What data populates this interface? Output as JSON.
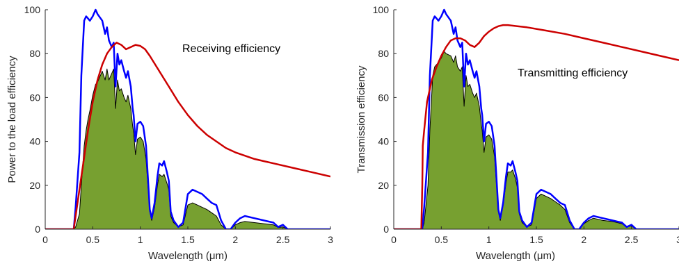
{
  "chart_data": [
    {
      "type": "line",
      "title": "",
      "xlabel": "Wavelength (μm)",
      "ylabel": "Power to the load efficiency",
      "xlim": [
        0,
        3
      ],
      "ylim": [
        0,
        100
      ],
      "xticks": [
        0,
        0.5,
        1,
        1.5,
        2,
        2.5,
        3
      ],
      "xtick_labels": [
        "0",
        "0.5",
        "1",
        "1.5",
        "2",
        "2.5",
        "3"
      ],
      "yticks": [
        0,
        20,
        40,
        60,
        80,
        100
      ],
      "ytick_labels": [
        "0",
        "20",
        "40",
        "60",
        "80",
        "100"
      ],
      "annotation": "Receiving efficiency",
      "grid": false,
      "series": [
        {
          "color": "#0000ff",
          "x": [
            0,
            0.3,
            0.32,
            0.36,
            0.38,
            0.41,
            0.43,
            0.45,
            0.47,
            0.5,
            0.53,
            0.55,
            0.6,
            0.63,
            0.65,
            0.67,
            0.7,
            0.72,
            0.74,
            0.76,
            0.78,
            0.8,
            0.83,
            0.85,
            0.87,
            0.9,
            0.92,
            0.93,
            0.95,
            0.97,
            1.0,
            1.03,
            1.06,
            1.1,
            1.12,
            1.15,
            1.18,
            1.2,
            1.23,
            1.25,
            1.28,
            1.3,
            1.32,
            1.35,
            1.4,
            1.45,
            1.5,
            1.55,
            1.6,
            1.65,
            1.7,
            1.75,
            1.8,
            1.85,
            1.9,
            1.95,
            2.0,
            2.05,
            2.1,
            2.2,
            2.3,
            2.4,
            2.45,
            2.5,
            2.55,
            3
          ],
          "y": [
            0,
            0,
            10,
            35,
            70,
            95,
            97,
            96,
            95,
            97,
            100,
            98,
            95,
            89,
            92,
            86,
            83,
            85,
            65,
            80,
            75,
            77,
            72,
            69,
            72,
            65,
            55,
            52,
            40,
            48,
            49,
            47,
            38,
            9,
            5,
            12,
            24,
            30,
            29,
            31,
            26,
            22,
            8,
            4,
            1,
            3,
            16,
            18,
            17,
            16,
            14,
            12,
            11,
            4,
            0,
            0,
            3,
            5,
            6,
            5,
            4,
            3,
            1,
            2,
            0,
            0
          ]
        },
        {
          "color": "#cc0000",
          "x": [
            0,
            0.3,
            0.35,
            0.4,
            0.45,
            0.5,
            0.55,
            0.6,
            0.65,
            0.7,
            0.75,
            0.8,
            0.85,
            0.9,
            0.95,
            1.0,
            1.05,
            1.1,
            1.2,
            1.3,
            1.4,
            1.5,
            1.6,
            1.7,
            1.8,
            1.9,
            2.0,
            2.2,
            2.4,
            2.6,
            2.8,
            3.0
          ],
          "y": [
            0,
            0,
            15,
            30,
            45,
            58,
            68,
            75,
            80,
            83,
            85,
            84,
            82,
            83,
            84,
            83.5,
            82,
            79,
            72,
            65,
            58,
            52,
            47,
            43,
            40,
            37,
            35,
            32,
            30,
            28,
            26,
            24
          ]
        },
        {
          "color": "#000000",
          "fill": "#77a030",
          "x": [
            0,
            0.3,
            0.32,
            0.36,
            0.38,
            0.41,
            0.43,
            0.45,
            0.47,
            0.5,
            0.53,
            0.55,
            0.6,
            0.63,
            0.65,
            0.67,
            0.7,
            0.72,
            0.74,
            0.76,
            0.78,
            0.8,
            0.83,
            0.85,
            0.87,
            0.9,
            0.92,
            0.93,
            0.95,
            0.97,
            1.0,
            1.03,
            1.06,
            1.1,
            1.12,
            1.15,
            1.18,
            1.2,
            1.23,
            1.25,
            1.28,
            1.3,
            1.32,
            1.35,
            1.4,
            1.45,
            1.5,
            1.55,
            1.6,
            1.65,
            1.7,
            1.75,
            1.8,
            1.85,
            1.9,
            1.95,
            2.0,
            2.05,
            2.1,
            2.2,
            2.3,
            2.4,
            2.45,
            2.5,
            2.55,
            3
          ],
          "y": [
            0,
            0,
            1,
            7,
            20,
            38,
            45,
            50,
            54,
            61,
            66,
            67,
            72,
            68,
            73,
            68,
            71,
            73,
            55,
            68,
            63,
            64,
            60,
            58,
            61,
            55,
            47,
            44,
            34,
            41,
            42,
            40,
            32,
            8,
            4,
            10,
            20,
            25,
            24,
            25,
            21,
            18,
            6,
            3,
            1,
            2,
            11,
            12,
            11,
            10,
            9,
            7.5,
            6,
            2,
            0,
            0,
            2,
            3,
            3.5,
            3,
            2.5,
            2,
            0.8,
            1,
            0,
            0
          ]
        }
      ]
    },
    {
      "type": "line",
      "title": "",
      "xlabel": "Wavelength (μm)",
      "ylabel": "Transmission efficiency",
      "xlim": [
        0,
        3
      ],
      "ylim": [
        0,
        100
      ],
      "xticks": [
        0,
        0.5,
        1,
        1.5,
        2,
        2.5,
        3
      ],
      "xtick_labels": [
        "0",
        "0.5",
        "1",
        "1.5",
        "2",
        "2.5",
        "3"
      ],
      "yticks": [
        0,
        20,
        40,
        60,
        80,
        100
      ],
      "ytick_labels": [
        "0",
        "20",
        "40",
        "60",
        "80",
        "100"
      ],
      "annotation": "Transmitting efficiency",
      "grid": false,
      "series": [
        {
          "color": "#0000ff",
          "x": [
            0,
            0.3,
            0.32,
            0.36,
            0.38,
            0.41,
            0.43,
            0.45,
            0.47,
            0.5,
            0.53,
            0.55,
            0.6,
            0.63,
            0.65,
            0.67,
            0.7,
            0.72,
            0.74,
            0.76,
            0.78,
            0.8,
            0.83,
            0.85,
            0.87,
            0.9,
            0.92,
            0.93,
            0.95,
            0.97,
            1.0,
            1.03,
            1.06,
            1.1,
            1.12,
            1.15,
            1.18,
            1.2,
            1.23,
            1.25,
            1.28,
            1.3,
            1.32,
            1.35,
            1.4,
            1.45,
            1.5,
            1.55,
            1.6,
            1.65,
            1.7,
            1.75,
            1.8,
            1.85,
            1.9,
            1.95,
            2.0,
            2.05,
            2.1,
            2.2,
            2.3,
            2.4,
            2.45,
            2.5,
            2.55,
            3
          ],
          "y": [
            0,
            0,
            10,
            35,
            70,
            95,
            97,
            96,
            95,
            97,
            100,
            98,
            95,
            89,
            92,
            86,
            83,
            85,
            65,
            80,
            75,
            77,
            72,
            69,
            72,
            65,
            55,
            52,
            40,
            48,
            49,
            47,
            38,
            9,
            5,
            12,
            24,
            30,
            29,
            31,
            26,
            22,
            8,
            4,
            1,
            3,
            16,
            18,
            17,
            16,
            14,
            12,
            11,
            4,
            0,
            0,
            3,
            5,
            6,
            5,
            4,
            3,
            1,
            2,
            0,
            0
          ]
        },
        {
          "color": "#cc0000",
          "x": [
            0,
            0.29,
            0.3,
            0.305,
            0.32,
            0.35,
            0.4,
            0.45,
            0.5,
            0.55,
            0.6,
            0.65,
            0.7,
            0.75,
            0.8,
            0.85,
            0.9,
            0.95,
            1.0,
            1.05,
            1.1,
            1.15,
            1.2,
            1.3,
            1.4,
            1.6,
            1.8,
            2.0,
            2.2,
            2.4,
            2.6,
            2.8,
            3.0
          ],
          "y": [
            0,
            0,
            20,
            38,
            45,
            58,
            68,
            74,
            79,
            83,
            86,
            87,
            87,
            86,
            84,
            83,
            85,
            88,
            90,
            91.5,
            92.5,
            93,
            93,
            92.5,
            92,
            90.5,
            89,
            87,
            85,
            83,
            81,
            79,
            77
          ]
        },
        {
          "color": "#000000",
          "fill": "#77a030",
          "x": [
            0,
            0.3,
            0.32,
            0.36,
            0.38,
            0.41,
            0.43,
            0.45,
            0.47,
            0.5,
            0.53,
            0.55,
            0.6,
            0.63,
            0.65,
            0.67,
            0.7,
            0.72,
            0.74,
            0.76,
            0.78,
            0.8,
            0.83,
            0.85,
            0.87,
            0.9,
            0.92,
            0.93,
            0.95,
            0.97,
            1.0,
            1.03,
            1.06,
            1.1,
            1.12,
            1.15,
            1.18,
            1.2,
            1.23,
            1.25,
            1.28,
            1.3,
            1.32,
            1.35,
            1.4,
            1.45,
            1.5,
            1.55,
            1.6,
            1.65,
            1.7,
            1.75,
            1.8,
            1.85,
            1.9,
            1.95,
            2.0,
            2.05,
            2.1,
            2.2,
            2.3,
            2.4,
            2.45,
            2.5,
            2.55,
            3
          ],
          "y": [
            0,
            0,
            3,
            20,
            45,
            70,
            74,
            75,
            76,
            78,
            81,
            80,
            79,
            76,
            79,
            74,
            72,
            74,
            56,
            70,
            65,
            66,
            62,
            60,
            62,
            56,
            48,
            45,
            35,
            42,
            43,
            41,
            33,
            8,
            4,
            11,
            21,
            26,
            26,
            27,
            23,
            19,
            7,
            3,
            1,
            2,
            14,
            16,
            15,
            14,
            12.5,
            11,
            9,
            3,
            0,
            0,
            2.5,
            4,
            5,
            4,
            3.5,
            2.5,
            1,
            1.5,
            0,
            0
          ]
        }
      ]
    }
  ]
}
